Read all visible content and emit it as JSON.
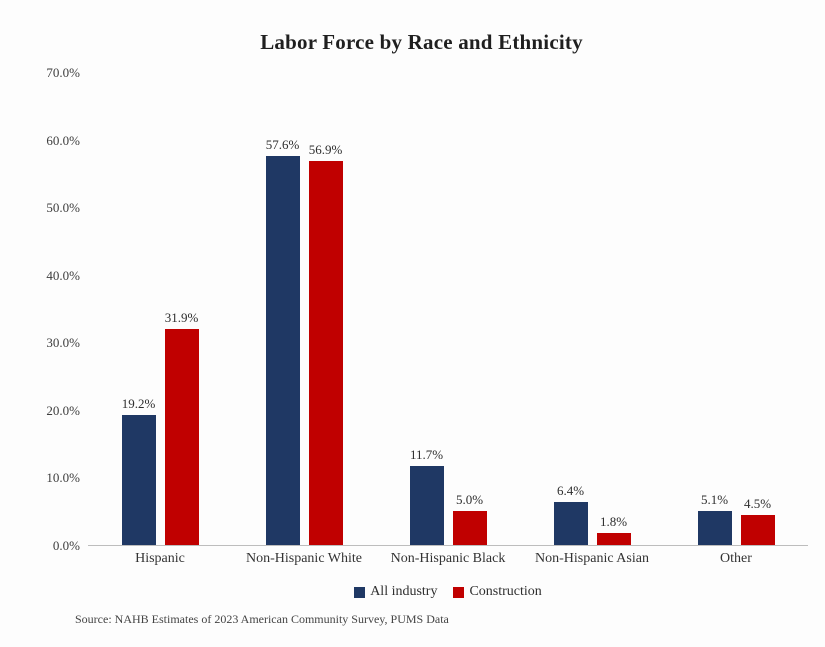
{
  "title": "Labor Force by Race and Ethnicity",
  "source_note": "Source: NAHB Estimates of 2023 American Community Survey, PUMS Data",
  "chart_data": {
    "type": "bar",
    "title": "Labor Force by Race and Ethnicity",
    "xlabel": "",
    "ylabel": "",
    "ylim": [
      0,
      70
    ],
    "grid": false,
    "legend_position": "bottom",
    "categories": [
      "Hispanic",
      "Non-Hispanic White",
      "Non-Hispanic Black",
      "Non-Hispanic Asian",
      "Other"
    ],
    "series": [
      {
        "name": "All industry",
        "color": "#1F3864",
        "values": [
          19.2,
          57.6,
          11.7,
          6.4,
          5.1
        ],
        "labels": [
          "19.2%",
          "57.6%",
          "11.7%",
          "6.4%",
          "5.1%"
        ]
      },
      {
        "name": "Construction",
        "color": "#C00000",
        "values": [
          31.9,
          56.9,
          5.0,
          1.8,
          4.5
        ],
        "labels": [
          "31.9%",
          "56.9%",
          "5.0%",
          "1.8%",
          "4.5%"
        ]
      }
    ],
    "yticks": [
      {
        "value": 0,
        "label": "0.0%"
      },
      {
        "value": 10,
        "label": "10.0%"
      },
      {
        "value": 20,
        "label": "20.0%"
      },
      {
        "value": 30,
        "label": "30.0%"
      },
      {
        "value": 40,
        "label": "40.0%"
      },
      {
        "value": 50,
        "label": "50.0%"
      },
      {
        "value": 60,
        "label": "60.0%"
      },
      {
        "value": 70,
        "label": "70.0%"
      }
    ]
  }
}
